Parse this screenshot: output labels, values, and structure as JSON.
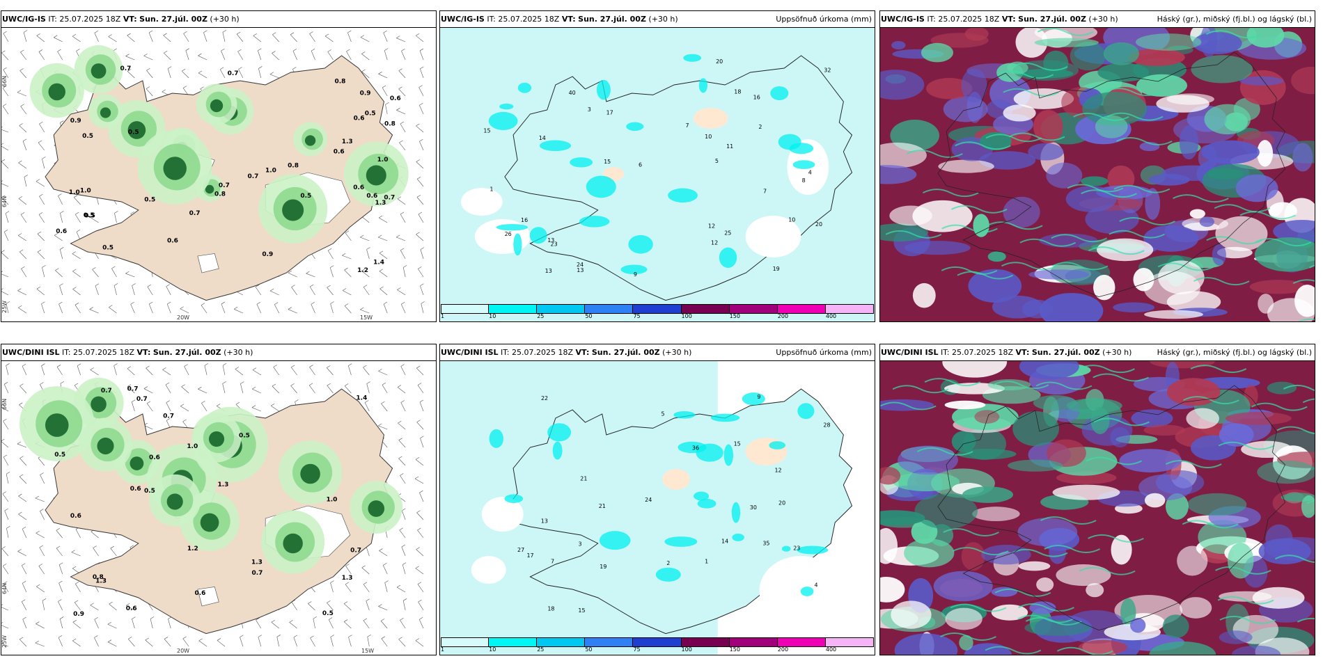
{
  "panels": {
    "p1": {
      "model": "UWC/IG-IS",
      "it_label": "IT:",
      "it_value": "25.07.2025 18Z",
      "vt_label": "VT:",
      "vt_value": "Sun. 27.júl. 00Z",
      "offset": "(+30 h)",
      "title_right": ""
    },
    "p2": {
      "model": "UWC/IG-IS",
      "it_label": "IT:",
      "it_value": "25.07.2025 18Z",
      "vt_label": "VT:",
      "vt_value": "Sun. 27.júl. 00Z",
      "offset": "(+30 h)",
      "title_right": "Uppsöfnuð úrkoma (mm)"
    },
    "p3": {
      "model": "UWC/IG-IS",
      "it_label": "IT:",
      "it_value": "25.07.2025 18Z",
      "vt_label": "VT:",
      "vt_value": "Sun. 27.júl. 00Z",
      "offset": "(+30 h)",
      "title_right": "Háský (gr.), miðský (fj.bl.) og lágský (bl.)"
    },
    "p4": {
      "model": "UWC/DINI ISL",
      "it_label": "IT:",
      "it_value": "25.07.2025 18Z",
      "vt_label": "VT:",
      "vt_value": "Sun. 27.júl. 00Z",
      "offset": "(+30 h)",
      "title_right": ""
    },
    "p5": {
      "model": "UWC/DINI ISL",
      "it_label": "IT:",
      "it_value": "25.07.2025 18Z",
      "vt_label": "VT:",
      "vt_value": "Sun. 27.júl. 00Z",
      "offset": "(+30 h)",
      "title_right": "Uppsöfnuð úrkoma (mm)"
    },
    "p6": {
      "model": "UWC/DINI ISL",
      "it_label": "IT:",
      "it_value": "25.07.2025 18Z",
      "vt_label": "VT:",
      "vt_value": "Sun. 27.júl. 00Z",
      "offset": "(+30 h)",
      "title_right": "Háský (gr.), miðský (fj.bl.) og lágský (bl.)"
    }
  },
  "axes": {
    "lat_66": "66N",
    "lat_64": "64N",
    "lon_20": "20W",
    "lon_15": "15W",
    "lon_25": "25W"
  },
  "colorbar": {
    "ticks": [
      "1",
      "10",
      "25",
      "50",
      "75",
      "100",
      "150",
      "200",
      "400"
    ],
    "colors": [
      "#d6fbfb",
      "#00f5f5",
      "#00c8f0",
      "#2f7ff5",
      "#1f3fd0",
      "#780050",
      "#a0007a",
      "#f000b4",
      "#f5b4f5"
    ]
  },
  "values": {
    "p1": [
      "0.5",
      "0.5",
      "0.9",
      "0.6",
      "0.6",
      "1.0",
      "1.2",
      "0.5",
      "0.5",
      "0.7",
      "0.7",
      "0.6",
      "1.0",
      "0.8",
      "0.6",
      "0.8",
      "0.7",
      "1.0",
      "0.5",
      "1.3",
      "0.9",
      "0.8",
      "1.4",
      "0.5",
      "0.6",
      "0.7",
      "0.6",
      "0.5",
      "1.0",
      "0.8",
      "1.3",
      "0.6",
      "0.7",
      "0.7",
      "0.5",
      "0.9"
    ],
    "p2": [
      "8",
      "10",
      "14",
      "15",
      "7",
      "10",
      "12",
      "13",
      "11",
      "13",
      "16",
      "20",
      "40",
      "25",
      "32",
      "23",
      "24",
      "16",
      "17",
      "19",
      "20",
      "26",
      "18",
      "15",
      "12",
      "13",
      "9",
      "6",
      "7",
      "3",
      "2",
      "5",
      "4",
      "1"
    ],
    "p4": [
      "1.3",
      "0.7",
      "0.6",
      "0.7",
      "0.7",
      "0.5",
      "1.2",
      "0.9",
      "0.6",
      "0.8",
      "0.5",
      "0.7",
      "1.3",
      "1.0",
      "0.6",
      "1.4",
      "0.5",
      "1.3",
      "0.7",
      "1.0",
      "0.6",
      "0.5",
      "1.3",
      "0.7",
      "0.6"
    ],
    "p5": [
      "15",
      "14",
      "21",
      "19",
      "23",
      "15",
      "13",
      "28",
      "30",
      "27",
      "21",
      "35",
      "24",
      "17",
      "22",
      "36",
      "20",
      "18",
      "12",
      "9",
      "7",
      "5",
      "3",
      "2",
      "4",
      "1"
    ]
  }
}
